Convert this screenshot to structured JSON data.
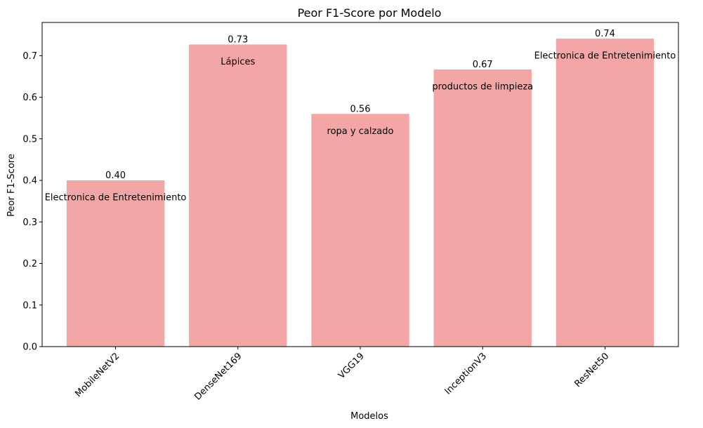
{
  "chart_data": {
    "type": "bar",
    "title": "Peor F1-Score por Modelo",
    "xlabel": "Modelos",
    "ylabel": "Peor F1-Score",
    "categories": [
      "MobileNetV2",
      "DenseNet169",
      "VGG19",
      "InceptionV3",
      "ResNet50"
    ],
    "values": [
      0.4,
      0.727,
      0.56,
      0.667,
      0.741
    ],
    "value_labels": [
      "0.40",
      "0.73",
      "0.56",
      "0.67",
      "0.74"
    ],
    "class_labels": [
      "Electronica de Entretenimiento",
      "Lápices",
      "ropa y calzado",
      "productos de limpieza",
      "Electronica de Entretenimiento"
    ],
    "ylim": [
      0,
      0.78
    ],
    "yticks": [
      0.0,
      0.1,
      0.2,
      0.3,
      0.4,
      0.5,
      0.6,
      0.7
    ],
    "ytick_labels": [
      "0.0",
      "0.1",
      "0.2",
      "0.3",
      "0.4",
      "0.5",
      "0.6",
      "0.7"
    ],
    "grid": false,
    "bar_color": "#f4a6a6",
    "axis_color": "#000000"
  }
}
